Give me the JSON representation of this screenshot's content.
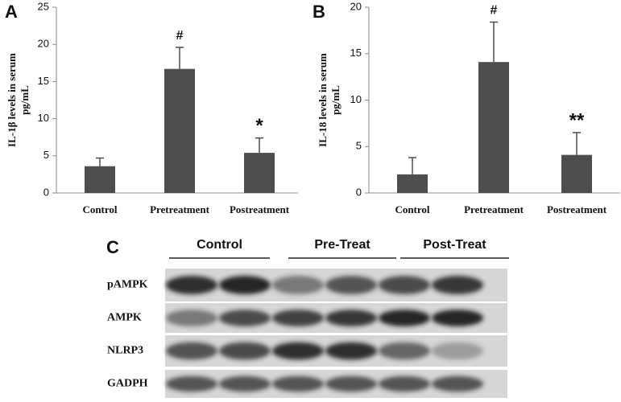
{
  "chart_data": [
    {
      "type": "bar",
      "panel": "A",
      "ylabel": [
        "IL-1β levels in serum",
        "pg/mL"
      ],
      "categories": [
        "Control",
        "Pretreatment",
        "Postreatment"
      ],
      "values": [
        3.6,
        16.7,
        5.4
      ],
      "errors": [
        1.1,
        2.9,
        2.0
      ],
      "annotations": [
        null,
        "#",
        "*"
      ],
      "color": "#4d4d4d",
      "ylim": [
        0,
        25
      ],
      "yticks": [
        0,
        5,
        10,
        15,
        20,
        25
      ]
    },
    {
      "type": "bar",
      "panel": "B",
      "ylabel": [
        "IL-18 levels in serum",
        "pg/mL"
      ],
      "categories": [
        "Control",
        "Pretreatment",
        "Postreatment"
      ],
      "values": [
        2.0,
        14.1,
        4.1
      ],
      "errors": [
        1.8,
        4.3,
        2.4
      ],
      "annotations": [
        null,
        "#",
        "**"
      ],
      "color": "#4d4d4d",
      "ylim": [
        0,
        20
      ],
      "yticks": [
        0,
        5,
        10,
        15,
        20
      ]
    }
  ],
  "blot": {
    "panel": "C",
    "groups": [
      "Control",
      "Pre-Treat",
      "Post-Treat"
    ],
    "rows": [
      "pAMPK",
      "AMPK",
      "NLRP3",
      "GADPH"
    ]
  }
}
